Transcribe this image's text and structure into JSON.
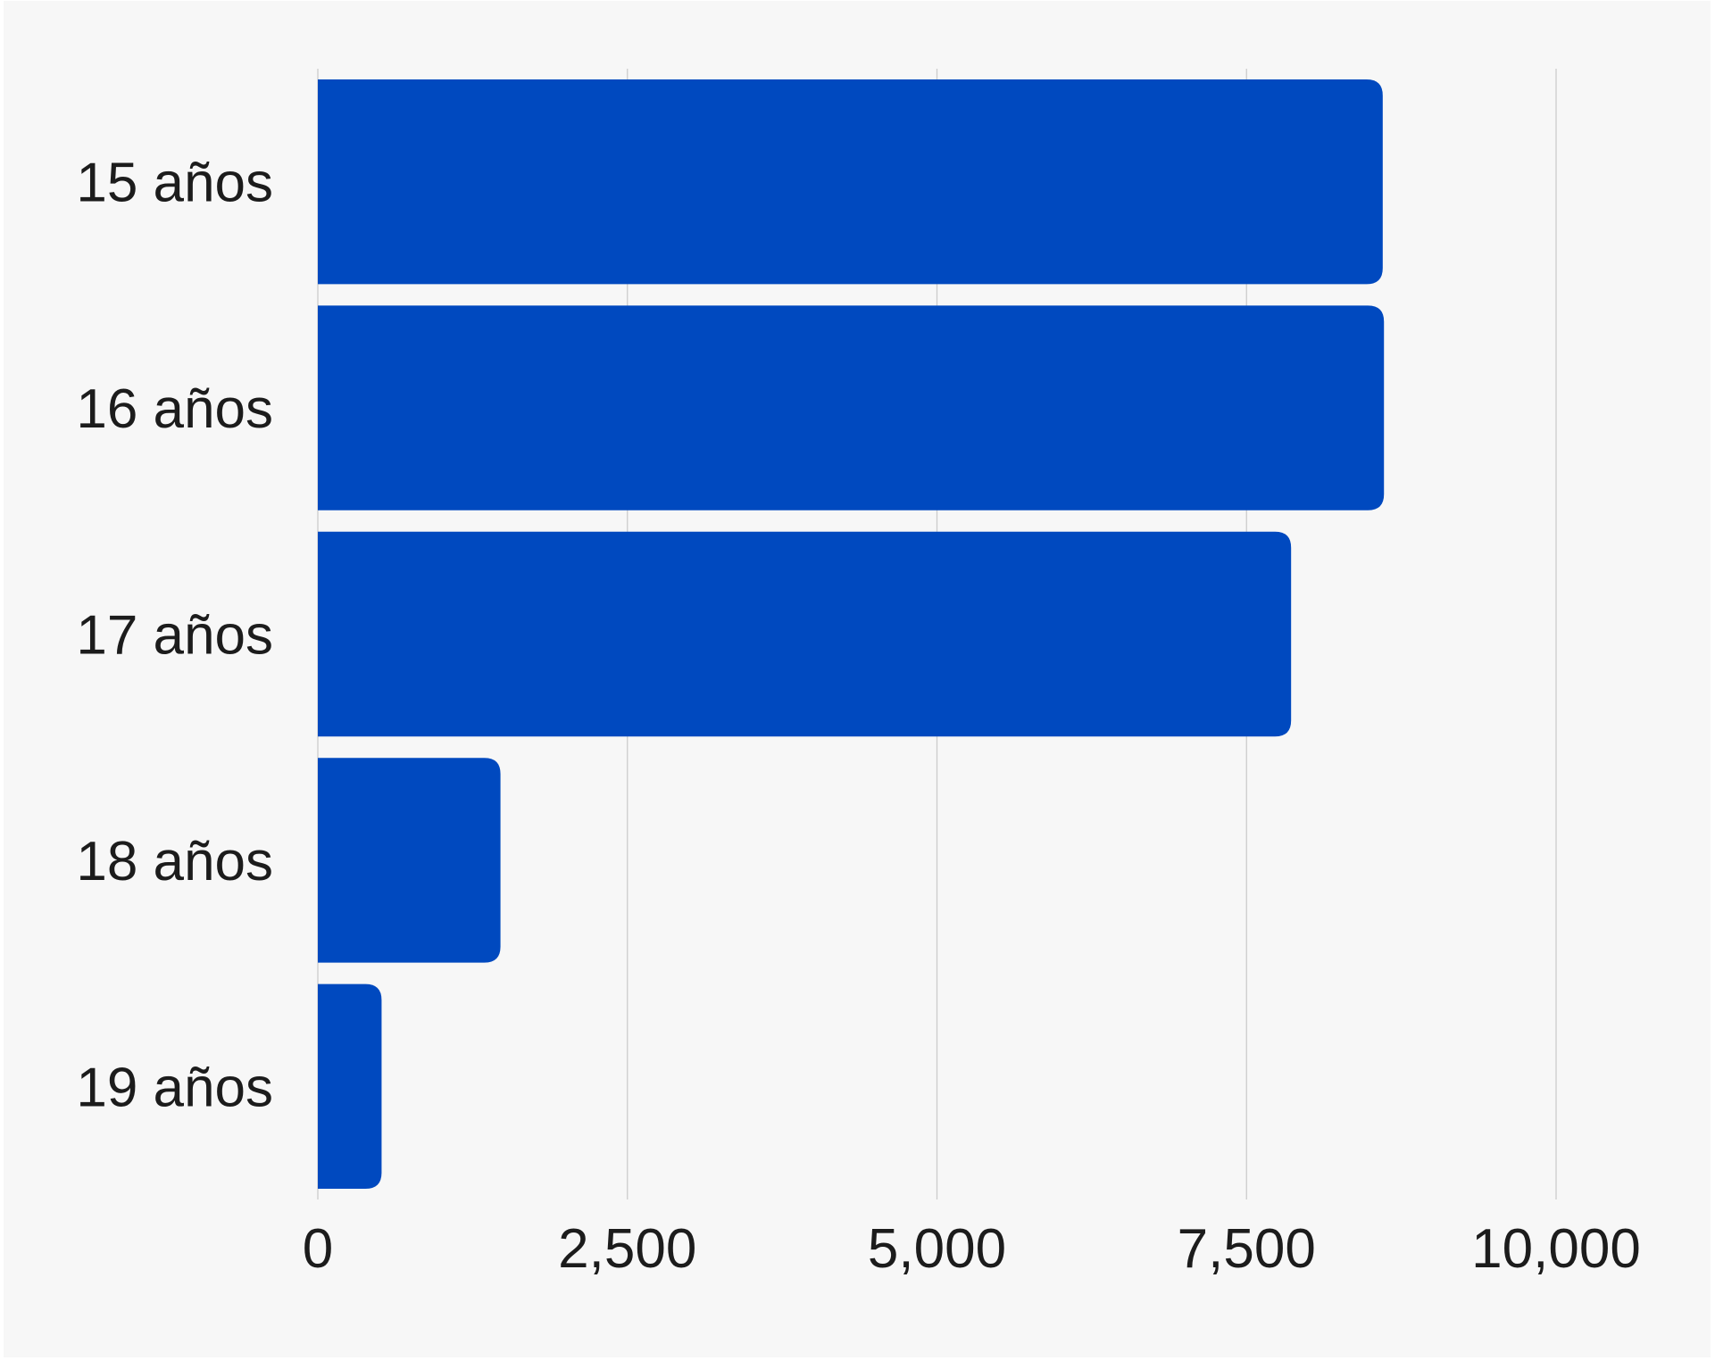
{
  "chart_data": {
    "type": "bar",
    "orientation": "horizontal",
    "categories": [
      "15 años",
      "16 años",
      "17 años",
      "18 años",
      "19 años"
    ],
    "values": [
      8600,
      8610,
      7860,
      1475,
      515
    ],
    "xlim": [
      0,
      10000
    ],
    "x_ticks": [
      0,
      2500,
      5000,
      7500,
      10000
    ],
    "x_tick_labels": [
      "0",
      "2,500",
      "5,000",
      "7,500",
      "10,000"
    ],
    "title": "",
    "xlabel": "",
    "ylabel": "",
    "grid": "vertical",
    "legend": "none",
    "colors": {
      "bar": "#0049bf",
      "background": "#f7f7f7",
      "grid": "#cccccc",
      "text": "#1c1c1c"
    }
  }
}
